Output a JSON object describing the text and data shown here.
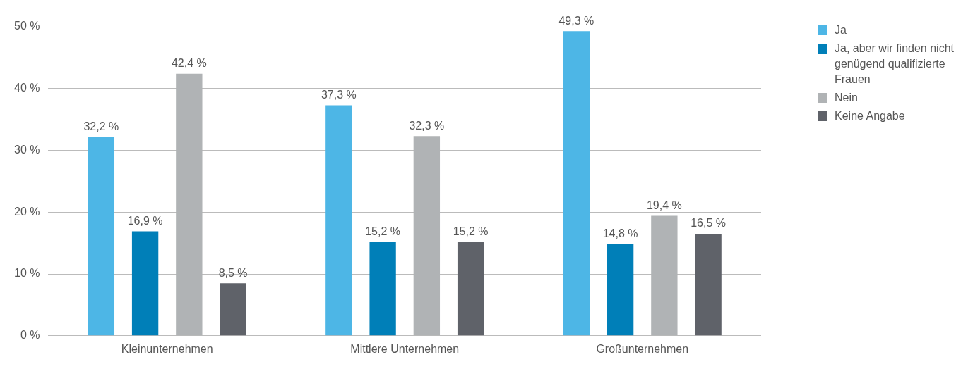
{
  "chart_data": {
    "type": "bar",
    "categories": [
      "Kleinunternehmen",
      "Mittlere Unternehmen",
      "Großunternehmen"
    ],
    "series": [
      {
        "name": "Ja",
        "color": "#4db6e6",
        "values": [
          32.2,
          37.3,
          49.3
        ],
        "value_labels": [
          "32,2 %",
          "37,3 %",
          "49,3 %"
        ]
      },
      {
        "name": "Ja, aber wir finden nicht genügend qualifizierte Frauen",
        "color": "#007fb8",
        "values": [
          16.9,
          15.2,
          14.8
        ],
        "value_labels": [
          "16,9 %",
          "15,2 %",
          "14,8 %"
        ]
      },
      {
        "name": "Nein",
        "color": "#b0b3b5",
        "values": [
          42.4,
          32.3,
          19.4
        ],
        "value_labels": [
          "42,4 %",
          "32,3 %",
          "19,4 %"
        ]
      },
      {
        "name": "Keine Angabe",
        "color": "#5f6269",
        "values": [
          8.5,
          15.2,
          16.5
        ],
        "value_labels": [
          "8,5 %",
          "15,2 %",
          "16,5 %"
        ]
      }
    ],
    "ylim": [
      0,
      50
    ],
    "yticks": [
      {
        "value": 0,
        "label": "0 %"
      },
      {
        "value": 10,
        "label": "10 %"
      },
      {
        "value": 20,
        "label": "20 %"
      },
      {
        "value": 30,
        "label": "30 %"
      },
      {
        "value": 40,
        "label": "40 %"
      },
      {
        "value": 50,
        "label": "50 %"
      }
    ],
    "grid": "y",
    "legend": "top right"
  }
}
